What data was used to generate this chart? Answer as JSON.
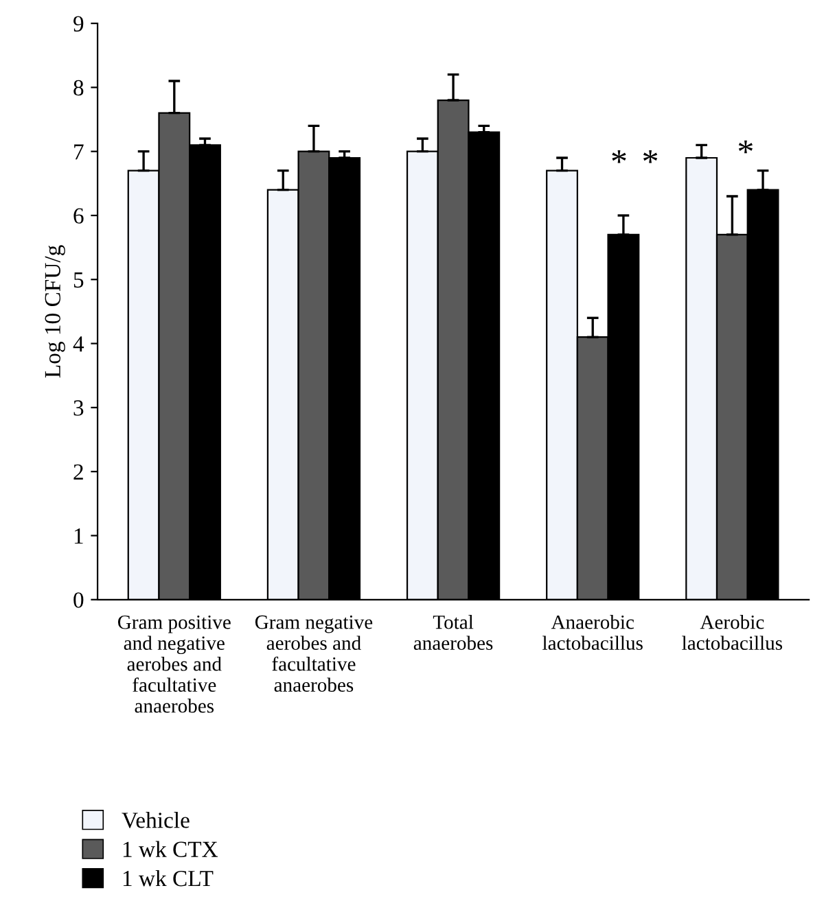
{
  "chart_data": {
    "type": "bar",
    "ylabel": "Log 10 CFU/g",
    "categories": [
      "Gram positive\nand negative\naerobes and\nfacultative\nanaerobes",
      "Gram negative\naerobes and\nfacultative\nanaerobes",
      "Total\nanaerobes",
      "Anaerobic\nlactobacillus",
      "Aerobic\nlactobacillus"
    ],
    "series": [
      {
        "name": "Vehicle",
        "color": "#f2f5fb",
        "values": [
          6.7,
          6.4,
          7.0,
          6.7,
          6.9
        ],
        "errors": [
          [
            6.7,
            7.0
          ],
          [
            6.4,
            6.7
          ],
          [
            7.0,
            7.2
          ],
          [
            6.7,
            6.9
          ],
          [
            6.9,
            7.1
          ]
        ]
      },
      {
        "name": "1 wk CTX",
        "color": "#5a5a5a",
        "values": [
          7.6,
          7.0,
          7.8,
          4.1,
          5.7
        ],
        "errors": [
          [
            7.6,
            8.1
          ],
          [
            7.0,
            7.4
          ],
          [
            7.8,
            8.2
          ],
          [
            4.1,
            4.4
          ],
          [
            5.7,
            6.3
          ]
        ]
      },
      {
        "name": "1 wk CLT",
        "color": "#000000",
        "values": [
          7.1,
          6.9,
          7.3,
          5.7,
          6.4
        ],
        "errors": [
          [
            7.1,
            7.2
          ],
          [
            6.9,
            7.0
          ],
          [
            7.3,
            7.4
          ],
          [
            5.7,
            6.0
          ],
          [
            6.4,
            6.7
          ]
        ]
      }
    ],
    "ylim": [
      0,
      9
    ],
    "yticks": [
      0,
      1,
      2,
      3,
      4,
      5,
      6,
      7,
      8,
      9
    ],
    "grid": false,
    "legend": "bottom left",
    "annotations": [
      "*",
      "*",
      "*"
    ]
  }
}
